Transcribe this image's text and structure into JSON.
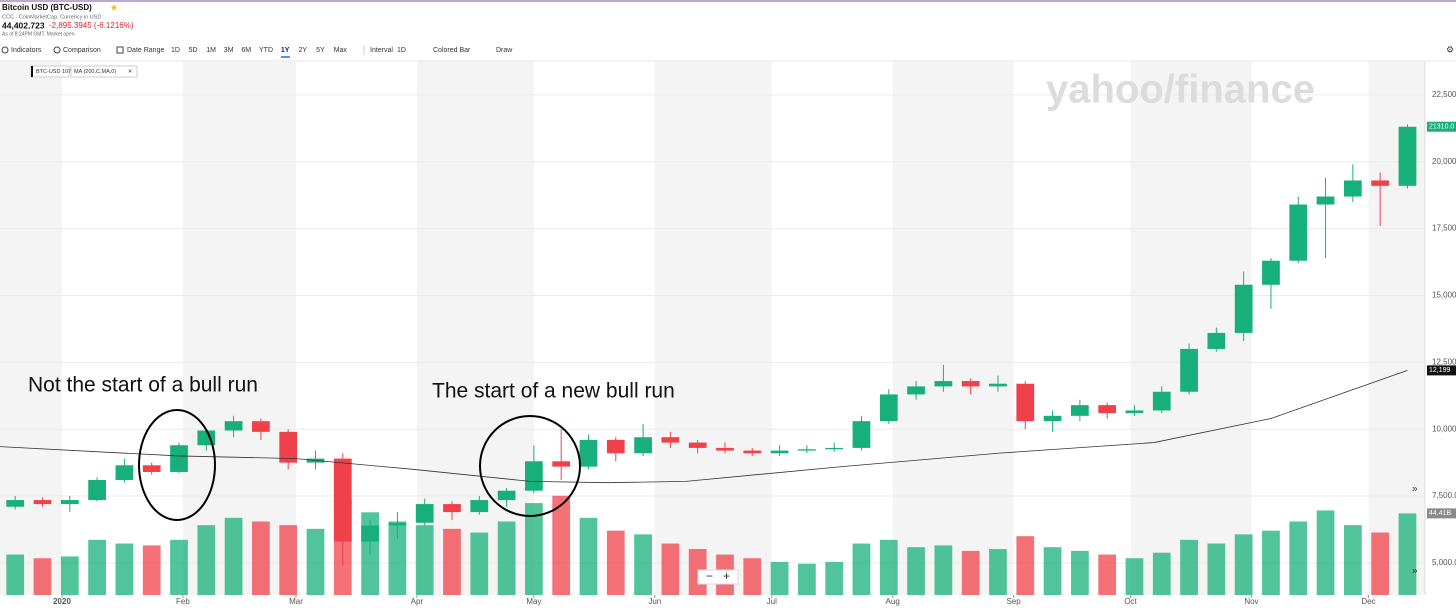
{
  "header": {
    "title": "Bitcoin USD (BTC-USD)",
    "source": "CCC - CoinMarketCap. Currency in USD",
    "price": "44,402.723",
    "change": "-2,895.3945 (-6.1216%)",
    "as_of": "As of 8:24PM GMT. Market open."
  },
  "toolbar": {
    "indicators": "Indicators",
    "comparison": "Comparison",
    "date_range": "Date Range",
    "ranges": [
      "1D",
      "5D",
      "1M",
      "3M",
      "6M",
      "YTD",
      "1Y",
      "2Y",
      "5Y",
      "Max"
    ],
    "active_range": "1Y",
    "interval": "Interval",
    "interval_value": "1D",
    "chart_type": "Colored Bar",
    "draw": "Draw"
  },
  "chips": [
    "BTC-USD 10787.62",
    "MA (200,C,MA,0)"
  ],
  "watermark": "yahoo/finance",
  "annotations": [
    {
      "text": "Not the start of a bull run"
    },
    {
      "text": "The start of a new bull run"
    }
  ],
  "zoom": [
    "−",
    "+"
  ],
  "expand": "»",
  "chart_data": {
    "type": "candlestick",
    "up_color": "#17b07a",
    "down_color": "#f0414b",
    "grid": true,
    "x": [
      -12,
      -5,
      2,
      9,
      16,
      23,
      30,
      37,
      44,
      51,
      58,
      65,
      72,
      79,
      86,
      93,
      100,
      107,
      114,
      121,
      128,
      135,
      142,
      149,
      156,
      163,
      170,
      177,
      184,
      191,
      198,
      205,
      212,
      219,
      226,
      233,
      240,
      247,
      254,
      261,
      268,
      275,
      282,
      289,
      296,
      303,
      310,
      317,
      324,
      331,
      338,
      345
    ],
    "open": [
      7100,
      7350,
      7200,
      7350,
      8100,
      8650,
      8400,
      9400,
      9950,
      10300,
      9900,
      8750,
      8900,
      5800,
      6400,
      6500,
      7200,
      6900,
      7350,
      7700,
      8800,
      8600,
      9600,
      9100,
      9700,
      9500,
      9300,
      9200,
      9100,
      9200,
      9250,
      9300,
      10300,
      11300,
      11600,
      11800,
      11600,
      11700,
      10300,
      10500,
      10900,
      10600,
      10700,
      11400,
      13000,
      13600,
      15400,
      16300,
      18400,
      18700,
      19300,
      19100
    ],
    "high": [
      7500,
      7450,
      7500,
      8200,
      8900,
      8750,
      9500,
      10000,
      10500,
      10400,
      10000,
      9200,
      9100,
      6600,
      6900,
      7400,
      7300,
      7500,
      7800,
      9400,
      10000,
      9800,
      9700,
      10200,
      9900,
      9600,
      9500,
      9300,
      9400,
      9400,
      9500,
      10500,
      11500,
      11800,
      12400,
      11900,
      12000,
      11800,
      10700,
      11100,
      11000,
      10900,
      11600,
      13200,
      13800,
      15900,
      16400,
      18700,
      19400,
      19900,
      19600,
      21400
    ],
    "low": [
      7000,
      7100,
      6900,
      7300,
      8000,
      8300,
      8350,
      9200,
      9700,
      9600,
      8500,
      8500,
      4900,
      5300,
      5900,
      6400,
      6600,
      6800,
      7100,
      7600,
      8100,
      8500,
      8800,
      9000,
      9300,
      9100,
      9100,
      9000,
      9000,
      9100,
      9150,
      9200,
      10200,
      11100,
      11400,
      11300,
      11400,
      10000,
      9900,
      10300,
      10400,
      10500,
      10600,
      11300,
      12900,
      13300,
      14500,
      16200,
      16400,
      18500,
      17600,
      19000
    ],
    "close": [
      7350,
      7200,
      7350,
      8100,
      8650,
      8400,
      9400,
      9950,
      10300,
      9900,
      8750,
      8900,
      5800,
      6400,
      6500,
      7200,
      6900,
      7350,
      7700,
      8800,
      8600,
      9600,
      9100,
      9700,
      9500,
      9300,
      9200,
      9100,
      9200,
      9250,
      9300,
      10300,
      11300,
      11600,
      11800,
      11600,
      11700,
      10300,
      10500,
      10900,
      10600,
      10700,
      11400,
      13000,
      13600,
      15400,
      16300,
      18400,
      18700,
      19300,
      19100,
      21310
    ],
    "volume": [
      22,
      20,
      21,
      30,
      28,
      27,
      30,
      38,
      42,
      40,
      38,
      36,
      52,
      45,
      40,
      38,
      36,
      34,
      40,
      50,
      54,
      42,
      35,
      33,
      28,
      25,
      22,
      20,
      18,
      17,
      18,
      28,
      30,
      26,
      27,
      24,
      25,
      32,
      26,
      24,
      22,
      20,
      23,
      30,
      28,
      33,
      35,
      40,
      46,
      38,
      34,
      44.41
    ],
    "vlim": [
      0,
      290
    ],
    "price_tag": {
      "value": 21310,
      "label": "21310.0"
    },
    "volume_tag": {
      "value": 44.41,
      "label": "44.41B"
    },
    "ma": {
      "name": "MA (200,C,MA,0)",
      "color": "#333333",
      "x": [
        -16,
        10,
        30,
        60,
        90,
        120,
        140,
        160,
        200,
        240,
        280,
        310,
        345
      ],
      "values": [
        9350,
        9150,
        9000,
        8900,
        8500,
        8050,
        8000,
        8050,
        8600,
        9100,
        9500,
        10400,
        12199
      ],
      "tag": {
        "value": 12199,
        "label": "12,199"
      }
    },
    "xlim": [
      -15.9,
      349.5
    ],
    "xticks": [
      {
        "value": 0,
        "label": "2020"
      },
      {
        "value": 31,
        "label": "Feb"
      },
      {
        "value": 60,
        "label": "Mar"
      },
      {
        "value": 91,
        "label": "Apr"
      },
      {
        "value": 121,
        "label": "May"
      },
      {
        "value": 152,
        "label": "Jun"
      },
      {
        "value": 182,
        "label": "Jul"
      },
      {
        "value": 213,
        "label": "Aug"
      },
      {
        "value": 244,
        "label": "Sep"
      },
      {
        "value": 274,
        "label": "Oct"
      },
      {
        "value": 305,
        "label": "Nov"
      },
      {
        "value": 335,
        "label": "Dec"
      }
    ],
    "ylim": [
      3800,
      23730
    ],
    "yticks": [
      {
        "value": 5000,
        "label": "5,000.0"
      },
      {
        "value": 7500,
        "label": "7,500.0"
      },
      {
        "value": 10000,
        "label": "10,000"
      },
      {
        "value": 12500,
        "label": "12,500"
      },
      {
        "value": 15000,
        "label": "15,000"
      },
      {
        "value": 17500,
        "label": "17,500"
      },
      {
        "value": 20000,
        "label": "20,000"
      },
      {
        "value": 22500,
        "label": "22,500"
      }
    ]
  }
}
